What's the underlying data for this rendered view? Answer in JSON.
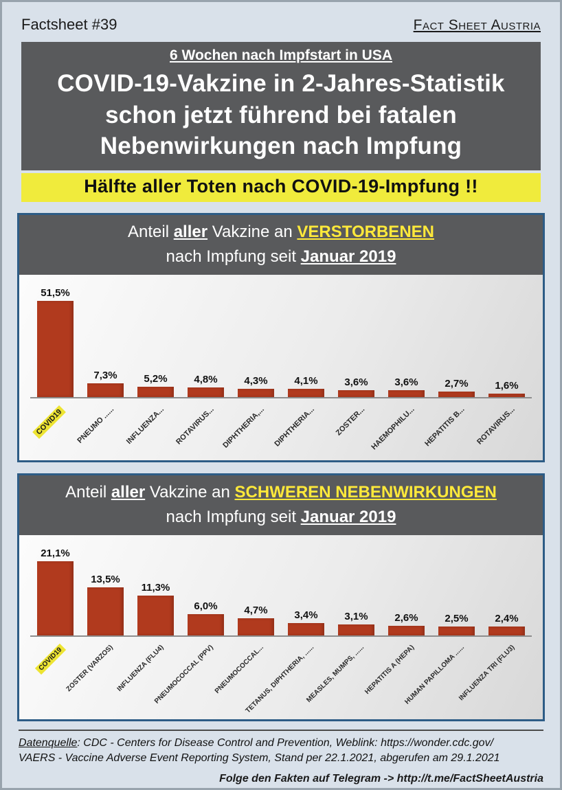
{
  "page": {
    "factsheet_number": "Factsheet #39",
    "brand": "Fact Sheet Austria"
  },
  "banner": {
    "subtitle": "6 Wochen nach Impfstart in USA",
    "title_line1": "COVID-19-Vakzine in 2-Jahres-Statistik",
    "title_line2": "schon jetzt führend bei fatalen",
    "title_line3": "Nebenwirkungen nach Impfung",
    "highlight": "Hälfte aller Toten nach COVID-19-Impfung !!"
  },
  "chart_data": [
    {
      "type": "bar",
      "title": "Anteil aller Vakzine an VERSTORBENEN nach Impfung seit Januar 2019",
      "title_segments": {
        "pre": "Anteil ",
        "aller": "aller",
        "mid": " Vakzine an ",
        "topic": "VERSTORBENEN",
        "line2_pre": "nach Impfung seit ",
        "line2_date": "Januar 2019"
      },
      "categories": [
        "COVID19",
        "PNEUMO ......",
        "INFLUENZA...",
        "ROTAVIRUS...",
        "DIPHTHERIA,...",
        "DIPHTHERIA...",
        "ZOSTER...",
        "HAEMOPHILU...",
        "HEPATITIS B...",
        "ROTAVIRUS..."
      ],
      "values": [
        51.5,
        7.3,
        5.2,
        4.8,
        4.3,
        4.1,
        3.6,
        3.6,
        2.7,
        1.6
      ],
      "value_labels": [
        "51,5%",
        "7,3%",
        "5,2%",
        "4,8%",
        "4,3%",
        "4,1%",
        "3,6%",
        "3,6%",
        "2,7%",
        "1,6%"
      ],
      "highlight_index": 0,
      "bar_color": "#b13a1e",
      "ylim": [
        0,
        55
      ],
      "grid": false,
      "legend": "none"
    },
    {
      "type": "bar",
      "title": "Anteil aller Vakzine an SCHWEREN NEBENWIRKUNGEN nach Impfung seit Januar 2019",
      "title_segments": {
        "pre": "Anteil ",
        "aller": "aller",
        "mid": " Vakzine an ",
        "topic": "SCHWEREN NEBENWIRKUNGEN",
        "line2_pre": "nach Impfung seit ",
        "line2_date": "Januar 2019"
      },
      "categories": [
        "COVID19",
        "ZOSTER (VARZOS)",
        "INFLUENZA (FLU4)",
        "PNEUMOCOCCAL (PPV)",
        "PNEUMOCOCCAL...",
        "TETANUS, DIPHTHERIA, ......",
        "MEASLES, MUMPS, ......",
        "HEPATITIS A (HEPA)",
        "HUMAN PAPILLOMA ......",
        "INFLUENZA TRI (FLU3)"
      ],
      "values": [
        21.1,
        13.5,
        11.3,
        6.0,
        4.7,
        3.4,
        3.1,
        2.6,
        2.5,
        2.4
      ],
      "value_labels": [
        "21,1%",
        "13,5%",
        "11,3%",
        "6,0%",
        "4,7%",
        "3,4%",
        "3,1%",
        "2,6%",
        "2,5%",
        "2,4%"
      ],
      "highlight_index": 0,
      "bar_color": "#b13a1e",
      "ylim": [
        0,
        22
      ],
      "grid": false,
      "legend": "none"
    }
  ],
  "footer": {
    "source_label": "Datenquelle",
    "source_rest": ": CDC - Centers for Disease Control and Prevention, Weblink: https://wonder.cdc.gov/",
    "line2": "VAERS - Vaccine Adverse Event Reporting System,  Stand per 22.1.2021, abgerufen am 29.1.2021",
    "telegram": "Folge den Fakten auf Telegram  ->  http://t.me/FactSheetAustria"
  }
}
